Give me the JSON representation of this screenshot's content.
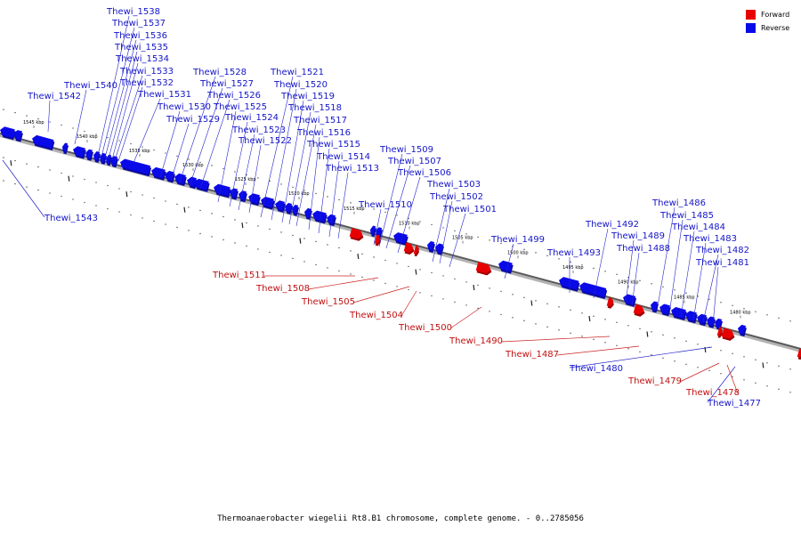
{
  "legend": {
    "forward_label": "Forward",
    "forward_color": "#e80000",
    "reverse_label": "Reverse",
    "reverse_color": "#0a0ae8"
  },
  "caption": "Thermoanaerobacter wiegelii Rt8.B1 chromosome, complete genome. - 0..2785056",
  "kbp_marks": [
    "1545 kbp",
    "1540 kbp",
    "1535 kbp",
    "1530 kbp",
    "1525 kbp",
    "1520 kbp",
    "1515 kbp",
    "1510 kbp",
    "1505 kbp",
    "1500 kbp",
    "1495 kbp",
    "1490 kbp",
    "1485 kbp",
    "1480 kbp"
  ],
  "reverse_genes": [
    "Thewi_1543",
    "Thewi_1542",
    "Thewi_1540",
    "Thewi_1538",
    "Thewi_1537",
    "Thewi_1536",
    "Thewi_1535",
    "Thewi_1534",
    "Thewi_1533",
    "Thewi_1532",
    "Thewi_1531",
    "Thewi_1530",
    "Thewi_1529",
    "Thewi_1528",
    "Thewi_1527",
    "Thewi_1526",
    "Thewi_1525",
    "Thewi_1524",
    "Thewi_1523",
    "Thewi_1522",
    "Thewi_1521",
    "Thewi_1520",
    "Thewi_1519",
    "Thewi_1518",
    "Thewi_1517",
    "Thewi_1516",
    "Thewi_1515",
    "Thewi_1514",
    "Thewi_1513",
    "Thewi_1510",
    "Thewi_1509",
    "Thewi_1507",
    "Thewi_1506",
    "Thewi_1503",
    "Thewi_1502",
    "Thewi_1501",
    "Thewi_1499",
    "Thewi_1493",
    "Thewi_1492",
    "Thewi_1489",
    "Thewi_1488",
    "Thewi_1486",
    "Thewi_1485",
    "Thewi_1484",
    "Thewi_1483",
    "Thewi_1482",
    "Thewi_1481",
    "Thewi_1480",
    "Thewi_1477"
  ],
  "forward_genes": [
    "Thewi_1511",
    "Thewi_1508",
    "Thewi_1505",
    "Thewi_1504",
    "Thewi_1500",
    "Thewi_1490",
    "Thewi_1487",
    "Thewi_1479",
    "Thewi_1478"
  ]
}
